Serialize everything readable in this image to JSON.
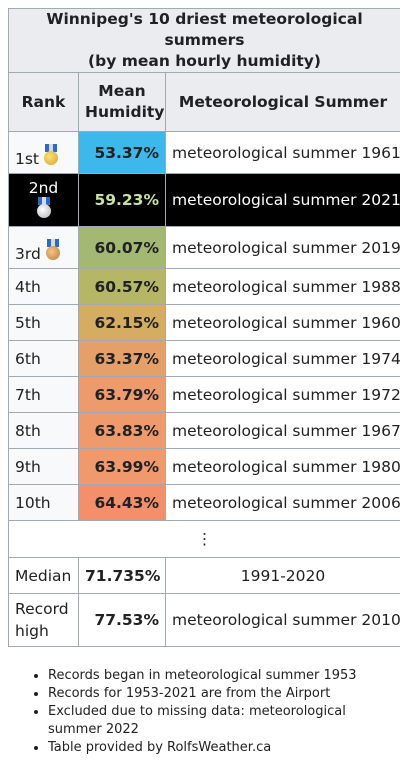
{
  "title_line1": "Winnipeg's 10 driest meteorological summers",
  "title_line2": "(by mean hourly humidity)",
  "headers": {
    "rank": "Rank",
    "mean_line1": "Mean",
    "mean_line2": "Humidity",
    "season": "Meteorological Summer"
  },
  "rows": [
    {
      "rank": "1st",
      "medal": "gold-medal-icon",
      "value": "53.37%",
      "label": "meteorological summer 1961",
      "bg": "#3db8ea"
    },
    {
      "rank": "2nd",
      "medal": "silver-medal-icon",
      "value": "59.23%",
      "label": "meteorological summer 2021",
      "bg": "#000000"
    },
    {
      "rank": "3rd",
      "medal": "bronze-medal-icon",
      "value": "60.07%",
      "label": "meteorological summer 2019",
      "bg": "#a2b873"
    },
    {
      "rank": "4th",
      "value": "60.57%",
      "label": "meteorological summer 1988",
      "bg": "#b5b767"
    },
    {
      "rank": "5th",
      "value": "62.15%",
      "label": "meteorological summer 1960",
      "bg": "#d4ad62"
    },
    {
      "rank": "6th",
      "value": "63.37%",
      "label": "meteorological summer 1974",
      "bg": "#e5a069"
    },
    {
      "rank": "7th",
      "value": "63.79%",
      "label": "meteorological summer 1972",
      "bg": "#ed9b6d"
    },
    {
      "rank": "8th",
      "value": "63.83%",
      "label": "meteorological summer 1967",
      "bg": "#ee9a6d"
    },
    {
      "rank": "9th",
      "value": "63.99%",
      "label": "meteorological summer 1980",
      "bg": "#ef996d"
    },
    {
      "rank": "10th",
      "value": "64.43%",
      "label": "meteorological summer 2006",
      "bg": "#f38f6a"
    }
  ],
  "ellipsis": "⋮",
  "median": {
    "label": "Median",
    "value": "71.735%",
    "period": "1991-2020"
  },
  "record_high": {
    "label_line1": "Record",
    "label_line2": "high",
    "value": "77.53%",
    "season": "meteorological summer 2010"
  },
  "notes": [
    "Records began in meteorological summer 1953",
    "Records for 1953-2021 are from the Airport",
    "Excluded due to missing data: meteorological summer 2022",
    "Table provided by RolfsWeather.ca"
  ]
}
